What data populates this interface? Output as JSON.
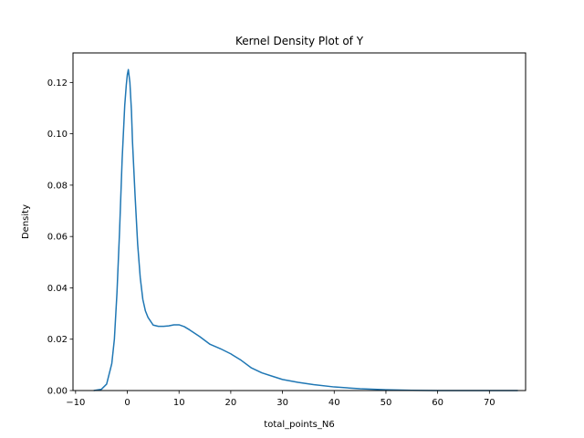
{
  "chart_data": {
    "type": "line",
    "title": "Kernel Density Plot of Y",
    "xlabel": "total_points_N6",
    "ylabel": "Density",
    "xlim": [
      -10.5,
      77
    ],
    "ylim": [
      0,
      0.1315
    ],
    "xticks": [
      -10,
      0,
      10,
      20,
      30,
      40,
      50,
      60,
      70
    ],
    "yticks": [
      0.0,
      0.02,
      0.04,
      0.06,
      0.08,
      0.1,
      0.12
    ],
    "ytick_labels": [
      "0.00",
      "0.02",
      "0.04",
      "0.06",
      "0.08",
      "0.10",
      "0.12"
    ],
    "grid": false,
    "legend": "none",
    "line_color": "#1f77b4",
    "series": [
      {
        "x": [
          -6.5,
          -5,
          -4,
          -3,
          -2.5,
          -2,
          -1.5,
          -1,
          -0.5,
          -0.2,
          0,
          0.2,
          0.5,
          0.8,
          1.0,
          1.5,
          2,
          2.5,
          3,
          3.5,
          4,
          5,
          6,
          7,
          8,
          9,
          10,
          11,
          12,
          14,
          16,
          18,
          20,
          22,
          24,
          26,
          28,
          30,
          33,
          36,
          40,
          45,
          50,
          55,
          60,
          65,
          70,
          75.5
        ],
        "y": [
          0.0,
          0.0005,
          0.0025,
          0.0105,
          0.02,
          0.038,
          0.062,
          0.09,
          0.111,
          0.119,
          0.123,
          0.125,
          0.12,
          0.109,
          0.097,
          0.076,
          0.057,
          0.044,
          0.0355,
          0.031,
          0.0285,
          0.0255,
          0.025,
          0.025,
          0.0252,
          0.0256,
          0.0256,
          0.0249,
          0.0237,
          0.021,
          0.018,
          0.0163,
          0.0143,
          0.0118,
          0.0088,
          0.0069,
          0.0056,
          0.0043,
          0.0032,
          0.0023,
          0.0014,
          0.0007,
          0.0003,
          0.0001,
          0.0,
          0.0,
          0.0,
          0.0
        ]
      }
    ]
  }
}
